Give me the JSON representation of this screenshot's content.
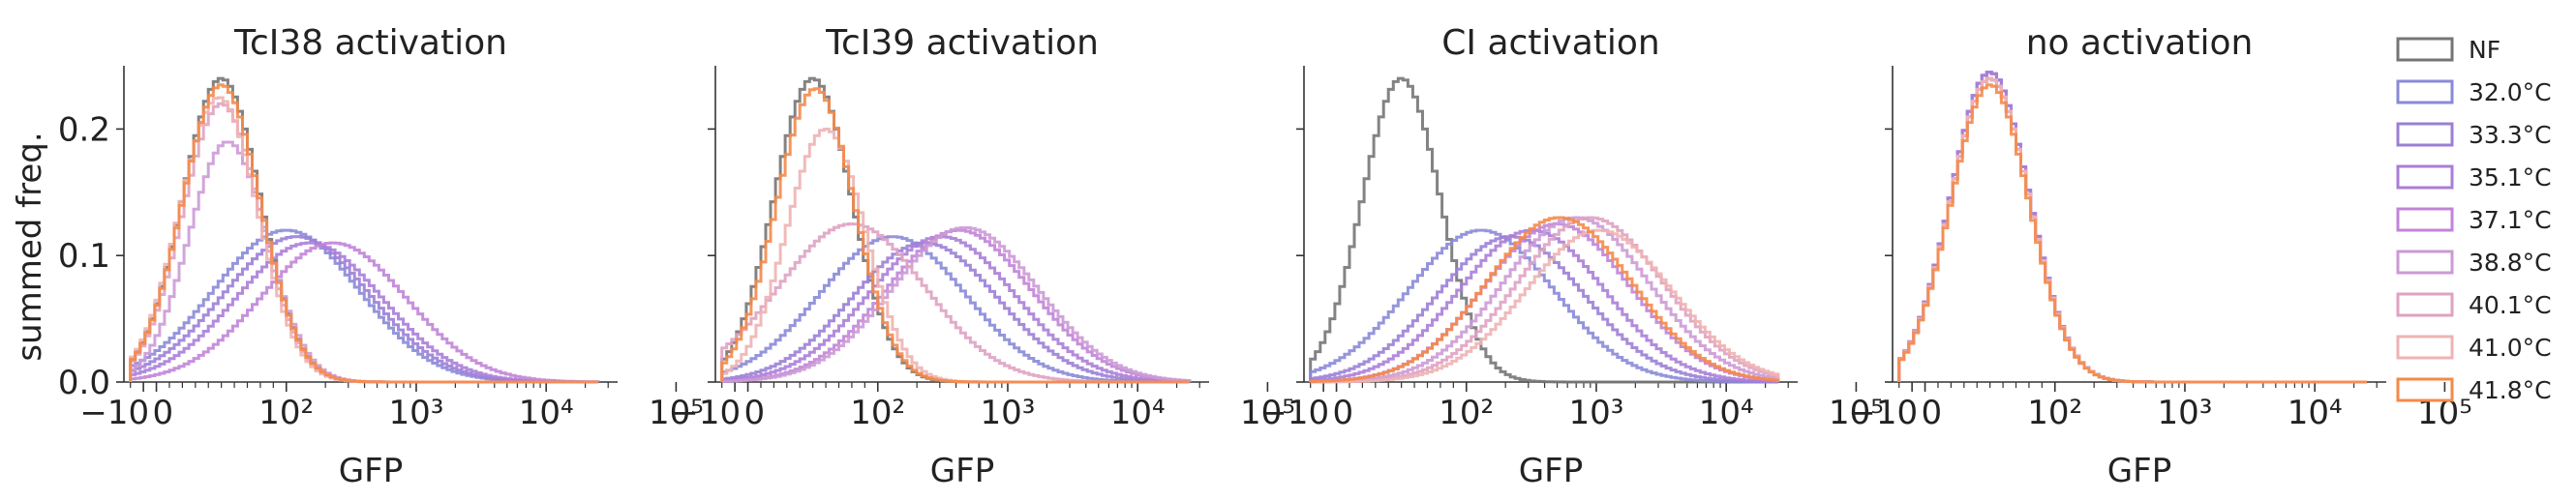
{
  "figure": {
    "ylabel": "summed freq.",
    "xlabel": "GFP"
  },
  "legend": [
    {
      "label": "NF",
      "color": "#757575"
    },
    {
      "label": "32.0°C",
      "color": "#8a8ad8"
    },
    {
      "label": "33.3°C",
      "color": "#9b7fd6"
    },
    {
      "label": "35.1°C",
      "color": "#aa7ed8"
    },
    {
      "label": "37.1°C",
      "color": "#c184d8"
    },
    {
      "label": "38.8°C",
      "color": "#cc9ad6"
    },
    {
      "label": "40.1°C",
      "color": "#dfa2c2"
    },
    {
      "label": "41.0°C",
      "color": "#eeb3b3"
    },
    {
      "label": "41.8°C",
      "color": "#f5894a"
    }
  ],
  "chart_data": [
    {
      "type": "line",
      "subtype": "step-histogram",
      "title": "TcI38 activation",
      "xlabel": "GFP",
      "ylabel": "summed freq.",
      "xscale": "symlog",
      "xtick_labels": [
        "−10",
        "0",
        "10²",
        "10³",
        "10⁴",
        "10⁵"
      ],
      "ytick_labels": [
        "0.0",
        "0.1",
        "0.2"
      ],
      "ylim": [
        0,
        0.25
      ],
      "series": [
        {
          "name": "NF",
          "peak_gfp": 50,
          "peak_freq": 0.24
        },
        {
          "name": "32.0°C",
          "peak_gfp": 100,
          "peak_freq": 0.12
        },
        {
          "name": "33.3°C",
          "peak_gfp": 120,
          "peak_freq": 0.115
        },
        {
          "name": "35.1°C",
          "peak_gfp": 150,
          "peak_freq": 0.11
        },
        {
          "name": "37.1°C",
          "peak_gfp": 230,
          "peak_freq": 0.11
        },
        {
          "name": "38.8°C",
          "peak_gfp": 55,
          "peak_freq": 0.19
        },
        {
          "name": "40.1°C",
          "peak_gfp": 50,
          "peak_freq": 0.22
        },
        {
          "name": "41.0°C",
          "peak_gfp": 48,
          "peak_freq": 0.225
        },
        {
          "name": "41.8°C",
          "peak_gfp": 50,
          "peak_freq": 0.235
        }
      ]
    },
    {
      "type": "line",
      "subtype": "step-histogram",
      "title": "TcI39 activation",
      "xlabel": "GFP",
      "xscale": "symlog",
      "xtick_labels": [
        "−10",
        "0",
        "10²",
        "10³",
        "10⁴",
        "10⁵"
      ],
      "ylim": [
        0,
        0.25
      ],
      "series": [
        {
          "name": "NF",
          "peak_gfp": 50,
          "peak_freq": 0.24
        },
        {
          "name": "32.0°C",
          "peak_gfp": 130,
          "peak_freq": 0.115
        },
        {
          "name": "33.3°C",
          "peak_gfp": 230,
          "peak_freq": 0.11
        },
        {
          "name": "35.1°C",
          "peak_gfp": 310,
          "peak_freq": 0.115
        },
        {
          "name": "37.1°C",
          "peak_gfp": 420,
          "peak_freq": 0.12
        },
        {
          "name": "38.8°C",
          "peak_gfp": 470,
          "peak_freq": 0.122
        },
        {
          "name": "40.1°C",
          "peak_gfp": 80,
          "peak_freq": 0.125
        },
        {
          "name": "41.0°C",
          "peak_gfp": 60,
          "peak_freq": 0.2
        },
        {
          "name": "41.8°C",
          "peak_gfp": 52,
          "peak_freq": 0.232
        }
      ]
    },
    {
      "type": "line",
      "subtype": "step-histogram",
      "title": "CI activation",
      "xlabel": "GFP",
      "xscale": "symlog",
      "xtick_labels": [
        "−10",
        "0",
        "10²",
        "10³",
        "10⁴",
        "10⁵"
      ],
      "ylim": [
        0,
        0.25
      ],
      "series": [
        {
          "name": "NF",
          "peak_gfp": 50,
          "peak_freq": 0.24
        },
        {
          "name": "32.0°C",
          "peak_gfp": 130,
          "peak_freq": 0.12
        },
        {
          "name": "33.3°C",
          "peak_gfp": 220,
          "peak_freq": 0.115
        },
        {
          "name": "35.1°C",
          "peak_gfp": 320,
          "peak_freq": 0.12
        },
        {
          "name": "37.1°C",
          "peak_gfp": 500,
          "peak_freq": 0.125
        },
        {
          "name": "38.8°C",
          "peak_gfp": 700,
          "peak_freq": 0.13
        },
        {
          "name": "40.1°C",
          "peak_gfp": 900,
          "peak_freq": 0.13
        },
        {
          "name": "41.0°C",
          "peak_gfp": 1050,
          "peak_freq": 0.12
        },
        {
          "name": "41.8°C",
          "peak_gfp": 520,
          "peak_freq": 0.13
        }
      ]
    },
    {
      "type": "line",
      "subtype": "step-histogram",
      "title": "no activation",
      "xlabel": "GFP",
      "xscale": "symlog",
      "xtick_labels": [
        "−10",
        "0",
        "10²",
        "10³",
        "10⁴",
        "10⁵"
      ],
      "ylim": [
        0,
        0.25
      ],
      "series": [
        {
          "name": "NF",
          "peak_gfp": 50,
          "peak_freq": 0.24
        },
        {
          "name": "32.0°C",
          "peak_gfp": 50,
          "peak_freq": 0.245
        },
        {
          "name": "33.3°C",
          "peak_gfp": 50,
          "peak_freq": 0.245
        },
        {
          "name": "35.1°C",
          "peak_gfp": 50,
          "peak_freq": 0.245
        },
        {
          "name": "37.1°C",
          "peak_gfp": 50,
          "peak_freq": 0.24
        },
        {
          "name": "38.8°C",
          "peak_gfp": 50,
          "peak_freq": 0.24
        },
        {
          "name": "40.1°C",
          "peak_gfp": 50,
          "peak_freq": 0.24
        },
        {
          "name": "41.0°C",
          "peak_gfp": 50,
          "peak_freq": 0.24
        },
        {
          "name": "41.8°C",
          "peak_gfp": 50,
          "peak_freq": 0.235
        }
      ]
    }
  ]
}
